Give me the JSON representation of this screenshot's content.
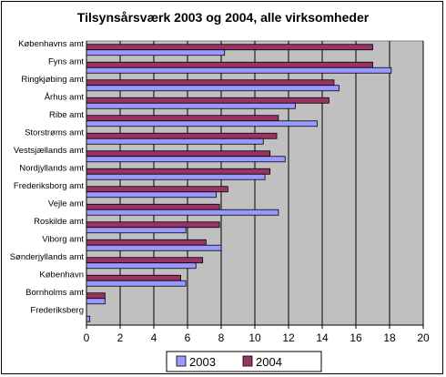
{
  "chart_data": {
    "type": "bar",
    "orientation": "horizontal",
    "title": "Tilsynsårsværk 2003 og 2004, alle virksomheder",
    "xlabel": "",
    "ylabel": "",
    "xlim": [
      0,
      20
    ],
    "xticks": [
      0,
      2,
      4,
      6,
      8,
      10,
      12,
      14,
      16,
      18,
      20
    ],
    "grid": "vertical",
    "legend_position": "bottom",
    "categories": [
      "Københavns amt",
      "Fyns amt",
      "Ringkjøbing amt",
      "Århus amt",
      "Ribe amt",
      "Storstrøms amt",
      "Vestsjællands amt",
      "Nordjyllands amt",
      "Frederiksborg amt",
      "Vejle amt",
      "Roskilde amt",
      "Viborg amt",
      "Sønderjyllands amt",
      "København",
      "Bornholms amt",
      "Frederiksberg"
    ],
    "series": [
      {
        "name": "2003",
        "color": "#9999ff",
        "values": [
          8.2,
          18.1,
          15.0,
          12.4,
          13.7,
          10.5,
          11.8,
          10.6,
          7.7,
          11.4,
          5.9,
          8.0,
          6.5,
          5.9,
          1.1,
          0.2
        ]
      },
      {
        "name": "2004",
        "color": "#993366",
        "values": [
          17.0,
          17.0,
          14.7,
          14.4,
          11.4,
          11.3,
          10.9,
          10.9,
          8.4,
          7.9,
          7.9,
          7.1,
          6.9,
          5.6,
          1.1,
          0
        ]
      }
    ],
    "plot_background": "#c0c0c0"
  }
}
